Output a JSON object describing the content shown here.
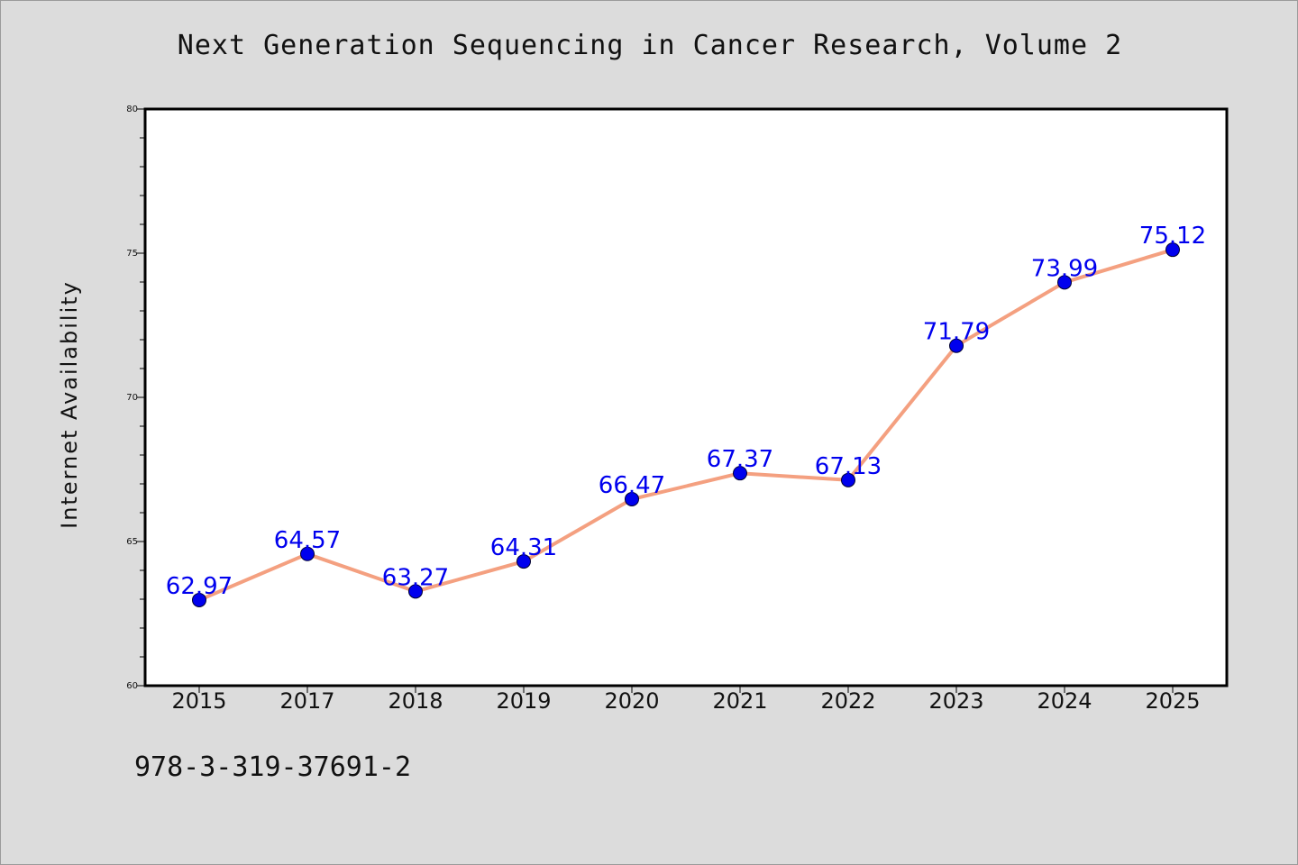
{
  "chart_data": {
    "type": "line",
    "title": "Next Generation Sequencing in Cancer Research, Volume 2",
    "xlabel": "",
    "ylabel": "Internet Availability",
    "categories": [
      "2015",
      "2017",
      "2018",
      "2019",
      "2020",
      "2021",
      "2022",
      "2023",
      "2024",
      "2025"
    ],
    "series": [
      {
        "values": [
          62.97,
          64.57,
          63.27,
          64.31,
          66.47,
          67.37,
          67.13,
          71.79,
          73.99,
          75.12
        ],
        "labels": [
          "62.97",
          "64.57",
          "63.27",
          "64.31",
          "66.47",
          "67.37",
          "67.13",
          "71.79",
          "73.99",
          "75.12"
        ],
        "line_color": "#f4a080",
        "marker_color": "#0000ee"
      }
    ],
    "ylim": [
      60,
      80
    ],
    "yticks": [
      "60",
      "65",
      "70",
      "75",
      "80"
    ],
    "grid": false,
    "legend": "none"
  },
  "footer": {
    "code": "978-3-319-37691-2"
  },
  "colors": {
    "background": "#dcdcdc",
    "plot_background": "#ffffff",
    "line": "#f4a080",
    "marker": "#0000ee",
    "data_label": "#0000ee"
  }
}
